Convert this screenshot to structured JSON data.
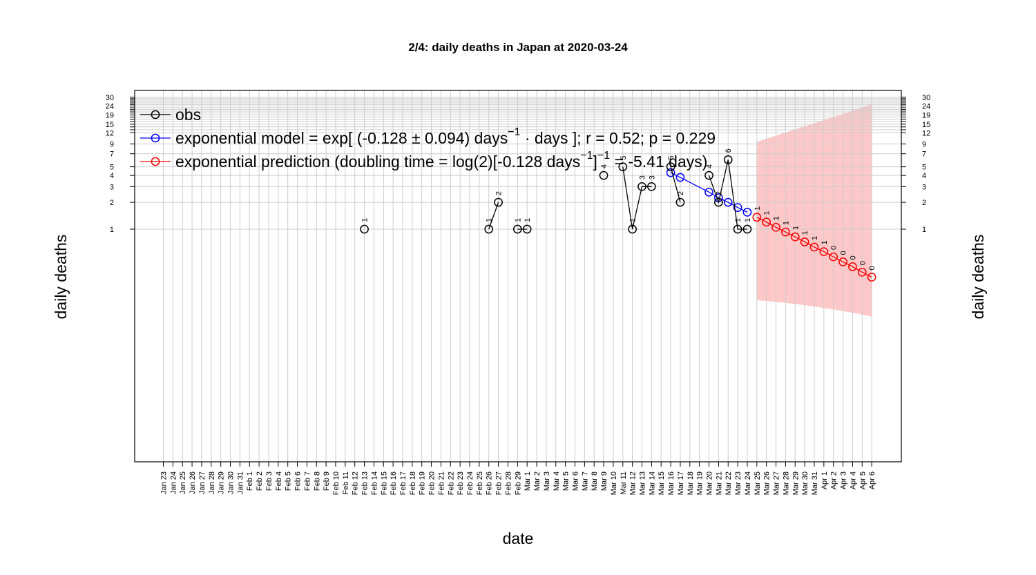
{
  "chart_data": {
    "type": "line",
    "title": "2/4: daily deaths in Japan at 2020-03-24",
    "xlabel": "date",
    "ylabel": "daily deaths",
    "y_scale": "log",
    "ylim": [
      0.1,
      30
    ],
    "y_ticks": [
      1,
      2,
      3,
      4,
      5,
      7,
      9,
      12,
      15,
      19,
      24,
      30
    ],
    "y_minor_ticks": [
      13,
      14,
      16,
      17,
      18,
      20,
      21,
      22,
      23,
      25,
      26,
      27,
      28,
      29
    ],
    "grid": true,
    "legend_placement": "top-left",
    "x_ticks": [
      "Jan 23",
      "Jan 24",
      "Jan 25",
      "Jan 26",
      "Jan 27",
      "Jan 28",
      "Jan 29",
      "Jan 30",
      "Jan 31",
      "Feb 1",
      "Feb 2",
      "Feb 3",
      "Feb 4",
      "Feb 5",
      "Feb 6",
      "Feb 7",
      "Feb 8",
      "Feb 9",
      "Feb 10",
      "Feb 11",
      "Feb 12",
      "Feb 13",
      "Feb 14",
      "Feb 15",
      "Feb 16",
      "Feb 17",
      "Feb 18",
      "Feb 19",
      "Feb 20",
      "Feb 21",
      "Feb 22",
      "Feb 23",
      "Feb 24",
      "Feb 25",
      "Feb 26",
      "Feb 27",
      "Feb 28",
      "Feb 29",
      "Mar 1",
      "Mar 2",
      "Mar 3",
      "Mar 4",
      "Mar 5",
      "Mar 6",
      "Mar 7",
      "Mar 8",
      "Mar 9",
      "Mar 10",
      "Mar 11",
      "Mar 12",
      "Mar 13",
      "Mar 14",
      "Mar 15",
      "Mar 16",
      "Mar 17",
      "Mar 18",
      "Mar 19",
      "Mar 20",
      "Mar 21",
      "Mar 22",
      "Mar 23",
      "Mar 24",
      "Mar 25",
      "Mar 26",
      "Mar 27",
      "Mar 28",
      "Mar 29",
      "Mar 30",
      "Mar 31",
      "Apr 1",
      "Apr 2",
      "Apr 3",
      "Apr 4",
      "Apr 5",
      "Apr 6"
    ],
    "legend": [
      {
        "key": "obs",
        "color": "#000000",
        "text": "obs"
      },
      {
        "key": "model",
        "color": "#0000ff",
        "text": "exponential model = exp[ (-0.128 ± 0.094) days",
        "sup": "−1",
        "tail": " ·  days ]; r = 0.52; p = 0.229"
      },
      {
        "key": "prediction",
        "color": "#ff0000",
        "text": "exponential prediction (doubling time = log(2)[-0.128 days",
        "sup": "−1",
        "mid": "]",
        "sup2": "−1",
        "tail": " = -5.41 days)"
      }
    ],
    "series": [
      {
        "name": "obs",
        "color": "#000000",
        "segments": [
          [
            {
              "x": "Feb 13",
              "y": 1,
              "label": "1"
            }
          ],
          [
            {
              "x": "Feb 26",
              "y": 1,
              "label": "1"
            },
            {
              "x": "Feb 27",
              "y": 2,
              "label": "2"
            }
          ],
          [
            {
              "x": "Feb 29",
              "y": 1,
              "label": "1"
            },
            {
              "x": "Mar 1",
              "y": 1,
              "label": "1"
            }
          ],
          [
            {
              "x": "Mar 9",
              "y": 4,
              "label": "4"
            }
          ],
          [
            {
              "x": "Mar 11",
              "y": 5,
              "label": "5"
            },
            {
              "x": "Mar 12",
              "y": 1,
              "label": "1"
            },
            {
              "x": "Mar 13",
              "y": 3,
              "label": "3"
            },
            {
              "x": "Mar 14",
              "y": 3,
              "label": "3"
            }
          ],
          [
            {
              "x": "Mar 16",
              "y": 5,
              "label": "5"
            },
            {
              "x": "Mar 17",
              "y": 2,
              "label": "2"
            }
          ],
          [
            {
              "x": "Mar 20",
              "y": 4,
              "label": "4"
            },
            {
              "x": "Mar 21",
              "y": 2,
              "label": "2"
            },
            {
              "x": "Mar 22",
              "y": 6,
              "label": "6"
            },
            {
              "x": "Mar 23",
              "y": 1,
              "label": "1"
            },
            {
              "x": "Mar 24",
              "y": 1,
              "label": "1"
            }
          ]
        ]
      },
      {
        "name": "exponential model",
        "color": "#0000ff",
        "points": [
          {
            "x": "Mar 16",
            "y": 4.3
          },
          {
            "x": "Mar 17",
            "y": 3.8
          },
          {
            "x": "Mar 20",
            "y": 2.6
          },
          {
            "x": "Mar 21",
            "y": 2.25
          },
          {
            "x": "Mar 22",
            "y": 2.0
          },
          {
            "x": "Mar 23",
            "y": 1.75
          },
          {
            "x": "Mar 24",
            "y": 1.55
          }
        ]
      },
      {
        "name": "exponential prediction",
        "color": "#ff0000",
        "points": [
          {
            "x": "Mar 25",
            "y": 1.36,
            "label": "1"
          },
          {
            "x": "Mar 26",
            "y": 1.2,
            "label": "1"
          },
          {
            "x": "Mar 27",
            "y": 1.05,
            "label": "1"
          },
          {
            "x": "Mar 28",
            "y": 0.93,
            "label": "1"
          },
          {
            "x": "Mar 29",
            "y": 0.82,
            "label": "1"
          },
          {
            "x": "Mar 30",
            "y": 0.72,
            "label": "1"
          },
          {
            "x": "Mar 31",
            "y": 0.63,
            "label": "1"
          },
          {
            "x": "Apr 1",
            "y": 0.56,
            "label": "1"
          },
          {
            "x": "Apr 2",
            "y": 0.49,
            "label": "0"
          },
          {
            "x": "Apr 3",
            "y": 0.43,
            "label": "0"
          },
          {
            "x": "Apr 4",
            "y": 0.38,
            "label": "0"
          },
          {
            "x": "Apr 5",
            "y": 0.33,
            "label": "0"
          },
          {
            "x": "Apr 6",
            "y": 0.29,
            "label": "0"
          }
        ]
      }
    ],
    "prediction_band": {
      "color": "#ffc8c8",
      "x": [
        "Mar 25",
        "Apr 6"
      ],
      "upper": [
        9.5,
        25
      ],
      "lower": [
        0.16,
        0.105
      ]
    }
  }
}
